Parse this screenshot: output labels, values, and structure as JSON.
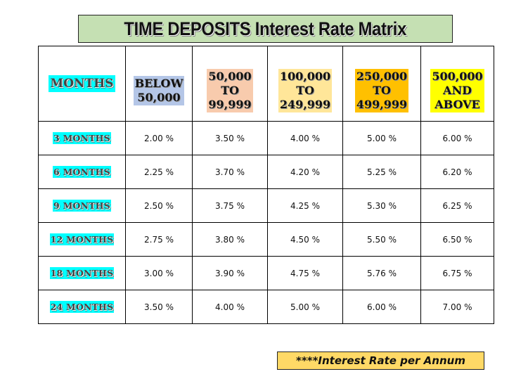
{
  "title": "TIME DEPOSITS Interest Rate Matrix",
  "table": {
    "corner_label": "MONTHS",
    "columns": [
      {
        "lines": [
          "BELOW",
          "50,000"
        ],
        "color": "#B4C6E7"
      },
      {
        "lines": [
          "50,000",
          "TO",
          "99,999"
        ],
        "color": "#F8CBAD"
      },
      {
        "lines": [
          "100,000",
          "TO",
          "249,999"
        ],
        "color": "#FFE699"
      },
      {
        "lines": [
          "250,000",
          "TO",
          "499,999"
        ],
        "color": "#FFC000"
      },
      {
        "lines": [
          "500,000",
          "AND",
          "ABOVE"
        ],
        "color": "#FFFF00"
      }
    ],
    "row_label_color": "#00FFFF",
    "rows": [
      {
        "label": "3 MONTHS",
        "rates": [
          "2.00 %",
          "3.50 %",
          "4.00 %",
          "5.00 %",
          "6.00 %"
        ]
      },
      {
        "label": "6 MONTHS",
        "rates": [
          "2.25 %",
          "3.70 %",
          "4.20 %",
          "5.25 %",
          "6.20 %"
        ]
      },
      {
        "label": "9 MONTHS",
        "rates": [
          "2.50 %",
          "3.75 %",
          "4.25 %",
          "5.30 %",
          "6.25 %"
        ]
      },
      {
        "label": "12 MONTHS",
        "rates": [
          "2.75 %",
          "3.80 %",
          "4.50 %",
          "5.50 %",
          "6.50 %"
        ]
      },
      {
        "label": "18 MONTHS",
        "rates": [
          "3.00 %",
          "3.90 %",
          "4.75 %",
          "5.76 %",
          "6.75 %"
        ]
      },
      {
        "label": "24 MONTHS",
        "rates": [
          "3.50 %",
          "4.00 %",
          "5.00 %",
          "6.00 %",
          "7.00 %"
        ]
      }
    ]
  },
  "footnote": "****Interest Rate per Annum",
  "colors": {
    "title_bg": "#C5E0B3",
    "footnote_bg": "#FFD966"
  }
}
